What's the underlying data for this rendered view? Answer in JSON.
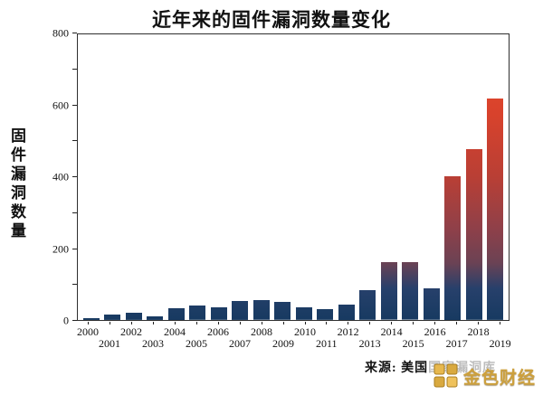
{
  "title": "近年来的固件漏洞数量变化",
  "y_axis": {
    "label": "固件漏洞数量",
    "tick_labels": [
      "0",
      "200",
      "400",
      "600",
      "800"
    ]
  },
  "source": "来源: 美国国家漏洞库",
  "watermark": {
    "text": "金色财经"
  },
  "colors": {
    "bar_bottom": "#173a61",
    "bar_top": "#e94d2a",
    "watermark_gold": "#CDA03C",
    "axis": "#2f2f2f"
  },
  "chart_data": {
    "type": "bar",
    "title": "近年来的固件漏洞数量变化",
    "ylabel": "固件漏洞数量",
    "xlabel": "",
    "ylim": [
      0,
      800
    ],
    "ytick_labeled_step": 200,
    "ytick_minor_step": 100,
    "grid": false,
    "legend": false,
    "categories": [
      "2000",
      "2001",
      "2002",
      "2003",
      "2004",
      "2005",
      "2006",
      "2007",
      "2008",
      "2009",
      "2010",
      "2011",
      "2012",
      "2013",
      "2014",
      "2015",
      "2016",
      "2017",
      "2018",
      "2019"
    ],
    "values": [
      5,
      15,
      20,
      10,
      33,
      40,
      35,
      53,
      55,
      50,
      35,
      30,
      43,
      83,
      161,
      161,
      88,
      403,
      478,
      620
    ],
    "source": "来源: 美国国家漏洞库"
  }
}
